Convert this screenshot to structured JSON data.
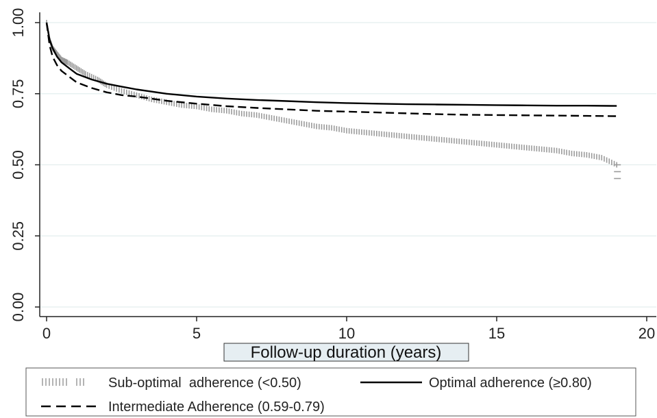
{
  "chart_data": {
    "type": "line",
    "title": "",
    "xlabel": "Follow-up duration (years)",
    "ylabel": "",
    "xlim": [
      0,
      20
    ],
    "ylim": [
      0,
      1
    ],
    "x_ticks": [
      "0",
      "5",
      "10",
      "15",
      "20"
    ],
    "y_ticks": [
      "0.00",
      "0.25",
      "0.50",
      "0.75",
      "1.00"
    ],
    "grid": true,
    "legend_position": "bottom",
    "series": [
      {
        "name": "Sub-optimal  adherence (<0.50)",
        "style": "censor-marks",
        "color": "#9a9a9a",
        "x": [
          0,
          0.1,
          0.2,
          0.35,
          0.5,
          0.7,
          1.0,
          1.3,
          1.7,
          2.0,
          2.5,
          3.0,
          3.5,
          4.0,
          4.5,
          5.0,
          5.5,
          6.0,
          6.5,
          7.0,
          7.5,
          8.0,
          8.5,
          9.0,
          9.5,
          10.0,
          10.5,
          11.0,
          11.5,
          12.0,
          12.5,
          13.0,
          13.5,
          14.0,
          14.5,
          15.0,
          15.5,
          16.0,
          16.5,
          17.0,
          17.5,
          18.0,
          18.5,
          19.0
        ],
        "y": [
          1.0,
          0.94,
          0.91,
          0.89,
          0.87,
          0.86,
          0.84,
          0.82,
          0.8,
          0.78,
          0.76,
          0.745,
          0.73,
          0.72,
          0.71,
          0.705,
          0.695,
          0.69,
          0.68,
          0.675,
          0.665,
          0.655,
          0.645,
          0.635,
          0.63,
          0.62,
          0.615,
          0.61,
          0.605,
          0.6,
          0.595,
          0.59,
          0.585,
          0.58,
          0.575,
          0.57,
          0.565,
          0.56,
          0.555,
          0.55,
          0.54,
          0.535,
          0.525,
          0.5
        ]
      },
      {
        "name": "Optimal adherence (≥0.80)",
        "style": "solid",
        "color": "#000000",
        "x": [
          0,
          0.1,
          0.2,
          0.35,
          0.5,
          0.75,
          1.0,
          1.5,
          2.0,
          2.5,
          3.0,
          4.0,
          5.0,
          6.0,
          7.0,
          8.0,
          9.0,
          10.0,
          11.0,
          12.0,
          13.0,
          14.0,
          15.0,
          16.0,
          17.0,
          18.0,
          19.0
        ],
        "y": [
          1.0,
          0.94,
          0.91,
          0.88,
          0.86,
          0.84,
          0.82,
          0.8,
          0.785,
          0.775,
          0.765,
          0.75,
          0.74,
          0.733,
          0.728,
          0.724,
          0.72,
          0.717,
          0.715,
          0.713,
          0.712,
          0.711,
          0.71,
          0.709,
          0.708,
          0.708,
          0.707
        ]
      },
      {
        "name": "Intermediate Adherence (0.59-0.79)",
        "style": "dashed",
        "color": "#000000",
        "x": [
          0,
          0.1,
          0.2,
          0.35,
          0.5,
          0.75,
          1.0,
          1.5,
          2.0,
          2.5,
          3.0,
          4.0,
          5.0,
          6.0,
          7.0,
          8.0,
          9.0,
          10.0,
          11.0,
          12.0,
          13.0,
          14.0,
          15.0,
          16.0,
          17.0,
          18.0,
          19.0
        ],
        "y": [
          1.0,
          0.92,
          0.88,
          0.85,
          0.83,
          0.81,
          0.79,
          0.77,
          0.755,
          0.745,
          0.74,
          0.725,
          0.715,
          0.706,
          0.7,
          0.695,
          0.69,
          0.687,
          0.684,
          0.681,
          0.678,
          0.676,
          0.675,
          0.674,
          0.673,
          0.672,
          0.671
        ]
      }
    ]
  },
  "legend": {
    "items": [
      {
        "label": "Sub-optimal  adherence (<0.50)",
        "style": "censor-marks"
      },
      {
        "label": "Optimal adherence (≥0.80)",
        "style": "solid"
      },
      {
        "label": "Intermediate Adherence (0.59-0.79)",
        "style": "dashed"
      }
    ]
  },
  "colors": {
    "grid": "#e3eeee",
    "axis": "#222222",
    "xlabel_box_bg": "#e6eef2"
  }
}
